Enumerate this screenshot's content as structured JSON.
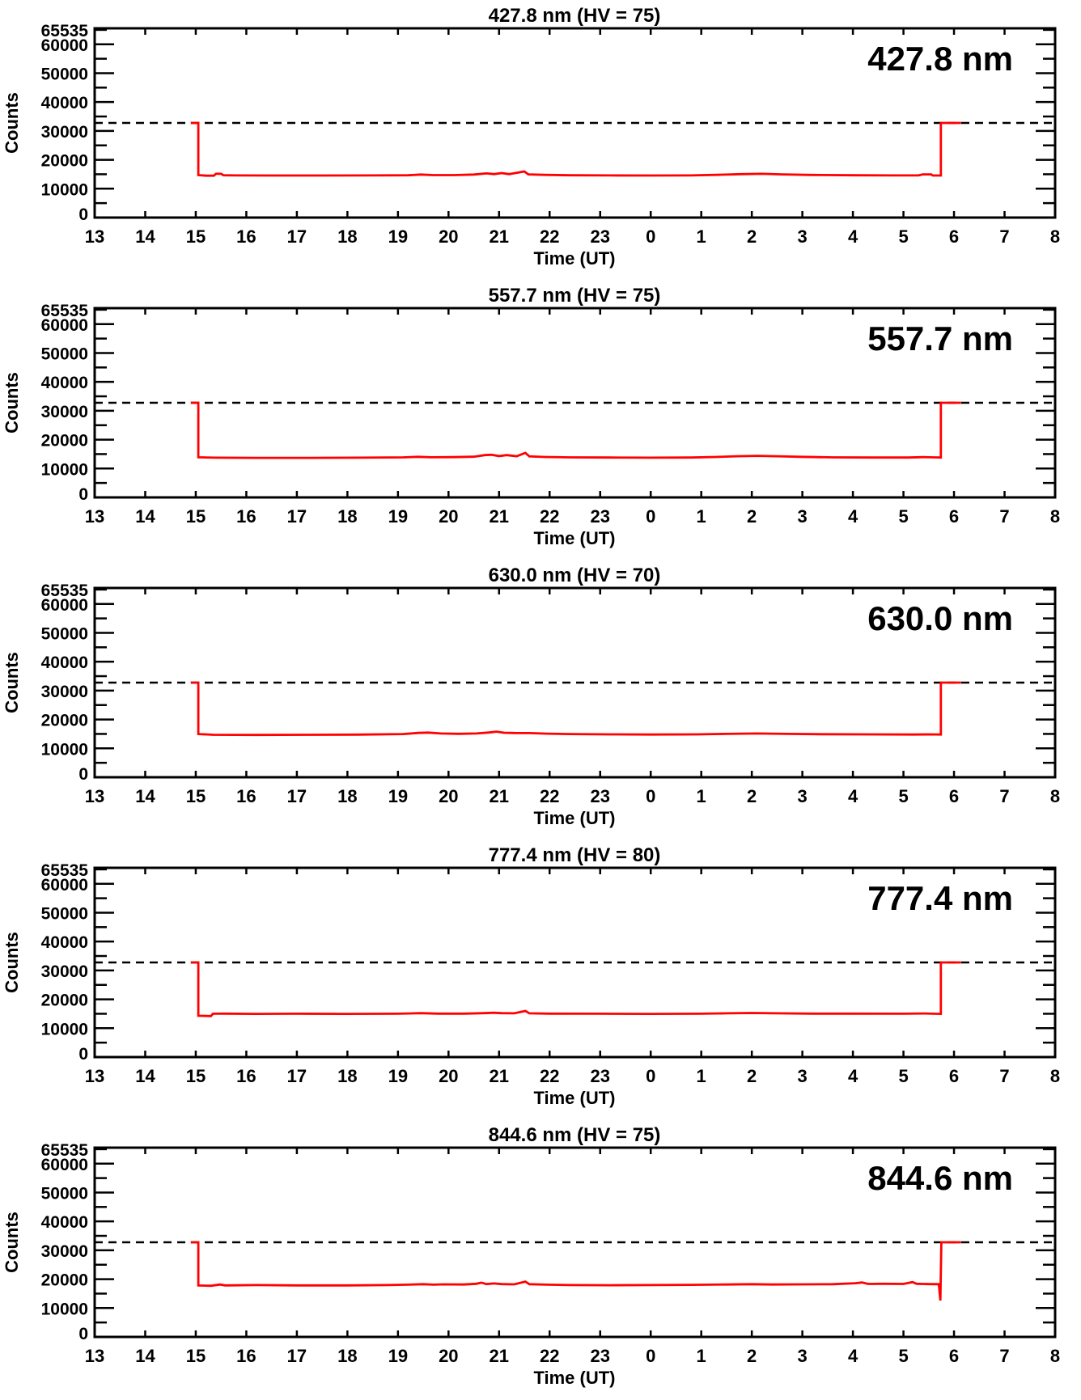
{
  "axes": {
    "xlabel": "Time (UT)",
    "ylabel": "Counts",
    "x_tick_labels": [
      "13",
      "14",
      "15",
      "16",
      "17",
      "18",
      "19",
      "20",
      "21",
      "22",
      "23",
      "0",
      "1",
      "2",
      "3",
      "4",
      "5",
      "6",
      "7",
      "8"
    ],
    "x_start_hour": 13,
    "x_span_hours": 19,
    "y_tick_values": [
      10000,
      20000,
      30000,
      40000,
      50000,
      60000
    ],
    "y_tick_labels": [
      "10000",
      "20000",
      "30000",
      "40000",
      "50000",
      "60000"
    ],
    "y_zero_label": "0",
    "y_top_label": "65535",
    "y_max": 65535,
    "y_minor_step": 5000,
    "dashed_line_counts": 32767,
    "axis_color": "#000000",
    "trace_color": "#ff0000"
  },
  "chart_data": [
    {
      "type": "line",
      "title": "427.8 nm (HV = 75)",
      "wavelength_label": "427.8 nm",
      "hv": "75",
      "ylim": [
        0,
        65535
      ],
      "baseline_counts": 14600,
      "saturation_level": 32767,
      "trace_on_ut": 15.0,
      "trace_off_ut": 5.75,
      "points": [
        [
          14.9,
          32767
        ],
        [
          15.05,
          32767
        ],
        [
          15.05,
          14700
        ],
        [
          15.2,
          14500
        ],
        [
          15.36,
          14500
        ],
        [
          15.4,
          15150
        ],
        [
          15.5,
          15150
        ],
        [
          15.55,
          14650
        ],
        [
          15.8,
          14600
        ],
        [
          16.5,
          14550
        ],
        [
          17.5,
          14550
        ],
        [
          18.5,
          14600
        ],
        [
          19.2,
          14650
        ],
        [
          19.45,
          14900
        ],
        [
          19.7,
          14700
        ],
        [
          20.1,
          14700
        ],
        [
          20.5,
          14900
        ],
        [
          20.75,
          15300
        ],
        [
          20.9,
          15050
        ],
        [
          21.05,
          15400
        ],
        [
          21.2,
          15050
        ],
        [
          21.5,
          15950
        ],
        [
          21.58,
          14950
        ],
        [
          21.9,
          14800
        ],
        [
          22.4,
          14650
        ],
        [
          23.2,
          14600
        ],
        [
          24.0,
          14550
        ],
        [
          24.8,
          14600
        ],
        [
          25.4,
          14850
        ],
        [
          25.8,
          15050
        ],
        [
          26.2,
          15150
        ],
        [
          26.6,
          14950
        ],
        [
          27.2,
          14750
        ],
        [
          28.0,
          14650
        ],
        [
          28.8,
          14600
        ],
        [
          29.3,
          14600
        ],
        [
          29.38,
          14950
        ],
        [
          29.55,
          14950
        ],
        [
          29.58,
          14550
        ],
        [
          29.74,
          14550
        ],
        [
          29.74,
          32767
        ],
        [
          30.14,
          32767
        ]
      ]
    },
    {
      "type": "line",
      "title": "557.7 nm (HV = 75)",
      "wavelength_label": "557.7 nm",
      "hv": "75",
      "ylim": [
        0,
        65535
      ],
      "baseline_counts": 13800,
      "saturation_level": 32767,
      "trace_on_ut": 15.0,
      "trace_off_ut": 5.75,
      "points": [
        [
          14.9,
          32767
        ],
        [
          15.05,
          32767
        ],
        [
          15.05,
          13900
        ],
        [
          15.4,
          13750
        ],
        [
          16.2,
          13700
        ],
        [
          17.2,
          13700
        ],
        [
          18.2,
          13750
        ],
        [
          19.1,
          13850
        ],
        [
          19.4,
          14050
        ],
        [
          19.65,
          13900
        ],
        [
          20.1,
          13950
        ],
        [
          20.5,
          14100
        ],
        [
          20.72,
          14650
        ],
        [
          20.85,
          14750
        ],
        [
          21.0,
          14300
        ],
        [
          21.15,
          14650
        ],
        [
          21.35,
          14250
        ],
        [
          21.52,
          15400
        ],
        [
          21.6,
          14200
        ],
        [
          21.9,
          14000
        ],
        [
          22.4,
          13850
        ],
        [
          23.2,
          13800
        ],
        [
          24.0,
          13750
        ],
        [
          24.8,
          13800
        ],
        [
          25.3,
          14000
        ],
        [
          25.7,
          14250
        ],
        [
          26.1,
          14400
        ],
        [
          26.5,
          14250
        ],
        [
          26.95,
          14050
        ],
        [
          27.6,
          13850
        ],
        [
          28.4,
          13800
        ],
        [
          29.1,
          13800
        ],
        [
          29.4,
          13950
        ],
        [
          29.6,
          13850
        ],
        [
          29.74,
          13800
        ],
        [
          29.74,
          32767
        ],
        [
          30.14,
          32767
        ]
      ]
    },
    {
      "type": "line",
      "title": "630.0 nm (HV = 70)",
      "wavelength_label": "630.0 nm",
      "hv": "70",
      "ylim": [
        0,
        65535
      ],
      "baseline_counts": 14800,
      "saturation_level": 32767,
      "trace_on_ut": 15.0,
      "trace_off_ut": 5.75,
      "points": [
        [
          14.9,
          32767
        ],
        [
          15.05,
          32767
        ],
        [
          15.05,
          14950
        ],
        [
          15.35,
          14700
        ],
        [
          16.2,
          14650
        ],
        [
          17.2,
          14700
        ],
        [
          18.2,
          14750
        ],
        [
          19.1,
          14950
        ],
        [
          19.4,
          15350
        ],
        [
          19.6,
          15450
        ],
        [
          19.85,
          15150
        ],
        [
          20.2,
          15050
        ],
        [
          20.55,
          15150
        ],
        [
          20.8,
          15500
        ],
        [
          20.95,
          15800
        ],
        [
          21.1,
          15400
        ],
        [
          21.35,
          15300
        ],
        [
          21.6,
          15300
        ],
        [
          21.95,
          15100
        ],
        [
          22.4,
          14950
        ],
        [
          23.2,
          14850
        ],
        [
          24.0,
          14800
        ],
        [
          24.9,
          14850
        ],
        [
          25.5,
          15000
        ],
        [
          26.1,
          15150
        ],
        [
          26.7,
          15000
        ],
        [
          27.4,
          14900
        ],
        [
          28.3,
          14850
        ],
        [
          29.2,
          14800
        ],
        [
          29.5,
          14850
        ],
        [
          29.74,
          14800
        ],
        [
          29.74,
          32767
        ],
        [
          30.14,
          32767
        ]
      ]
    },
    {
      "type": "line",
      "title": "777.4 nm (HV = 80)",
      "wavelength_label": "777.4 nm",
      "hv": "80",
      "ylim": [
        0,
        65535
      ],
      "baseline_counts": 15000,
      "saturation_level": 32767,
      "trace_on_ut": 15.0,
      "trace_off_ut": 5.75,
      "points": [
        [
          14.9,
          32767
        ],
        [
          15.05,
          32767
        ],
        [
          15.05,
          14300
        ],
        [
          15.3,
          14200
        ],
        [
          15.34,
          15000
        ],
        [
          15.6,
          15050
        ],
        [
          16.2,
          14950
        ],
        [
          17.0,
          15000
        ],
        [
          18.0,
          14950
        ],
        [
          19.0,
          15000
        ],
        [
          19.45,
          15200
        ],
        [
          19.8,
          15050
        ],
        [
          20.3,
          15050
        ],
        [
          20.7,
          15200
        ],
        [
          20.9,
          15350
        ],
        [
          21.05,
          15200
        ],
        [
          21.3,
          15150
        ],
        [
          21.52,
          15950
        ],
        [
          21.6,
          15150
        ],
        [
          22.0,
          15050
        ],
        [
          23.0,
          15000
        ],
        [
          24.0,
          14950
        ],
        [
          25.0,
          15000
        ],
        [
          25.5,
          15150
        ],
        [
          26.0,
          15250
        ],
        [
          26.5,
          15150
        ],
        [
          27.2,
          15050
        ],
        [
          28.0,
          15050
        ],
        [
          29.0,
          15000
        ],
        [
          29.4,
          15100
        ],
        [
          29.74,
          14950
        ],
        [
          29.74,
          32767
        ],
        [
          30.14,
          32767
        ]
      ]
    },
    {
      "type": "line",
      "title": "844.6 nm (HV = 75)",
      "wavelength_label": "844.6 nm",
      "hv": "75",
      "ylim": [
        0,
        65535
      ],
      "baseline_counts": 18000,
      "saturation_level": 32767,
      "trace_on_ut": 15.0,
      "trace_off_ut": 5.75,
      "points": [
        [
          14.9,
          32767
        ],
        [
          15.05,
          32767
        ],
        [
          15.05,
          17800
        ],
        [
          15.3,
          17700
        ],
        [
          15.48,
          18150
        ],
        [
          15.58,
          17850
        ],
        [
          16.2,
          17950
        ],
        [
          17.0,
          17850
        ],
        [
          18.0,
          17850
        ],
        [
          18.8,
          17950
        ],
        [
          19.2,
          18100
        ],
        [
          19.5,
          18250
        ],
        [
          19.7,
          18100
        ],
        [
          19.9,
          18200
        ],
        [
          20.3,
          18150
        ],
        [
          20.55,
          18400
        ],
        [
          20.65,
          18800
        ],
        [
          20.75,
          18300
        ],
        [
          20.9,
          18500
        ],
        [
          21.05,
          18300
        ],
        [
          21.3,
          18200
        ],
        [
          21.52,
          19150
        ],
        [
          21.6,
          18250
        ],
        [
          21.95,
          18100
        ],
        [
          22.4,
          17950
        ],
        [
          23.2,
          17900
        ],
        [
          24.0,
          17950
        ],
        [
          24.8,
          18050
        ],
        [
          25.5,
          18150
        ],
        [
          26.0,
          18250
        ],
        [
          26.4,
          18150
        ],
        [
          27.0,
          18200
        ],
        [
          27.6,
          18250
        ],
        [
          28.05,
          18600
        ],
        [
          28.18,
          18850
        ],
        [
          28.3,
          18350
        ],
        [
          28.6,
          18400
        ],
        [
          29.0,
          18350
        ],
        [
          29.18,
          19000
        ],
        [
          29.26,
          18400
        ],
        [
          29.5,
          18300
        ],
        [
          29.7,
          18250
        ],
        [
          29.73,
          12600
        ],
        [
          29.75,
          32767
        ],
        [
          30.14,
          32767
        ]
      ]
    }
  ]
}
